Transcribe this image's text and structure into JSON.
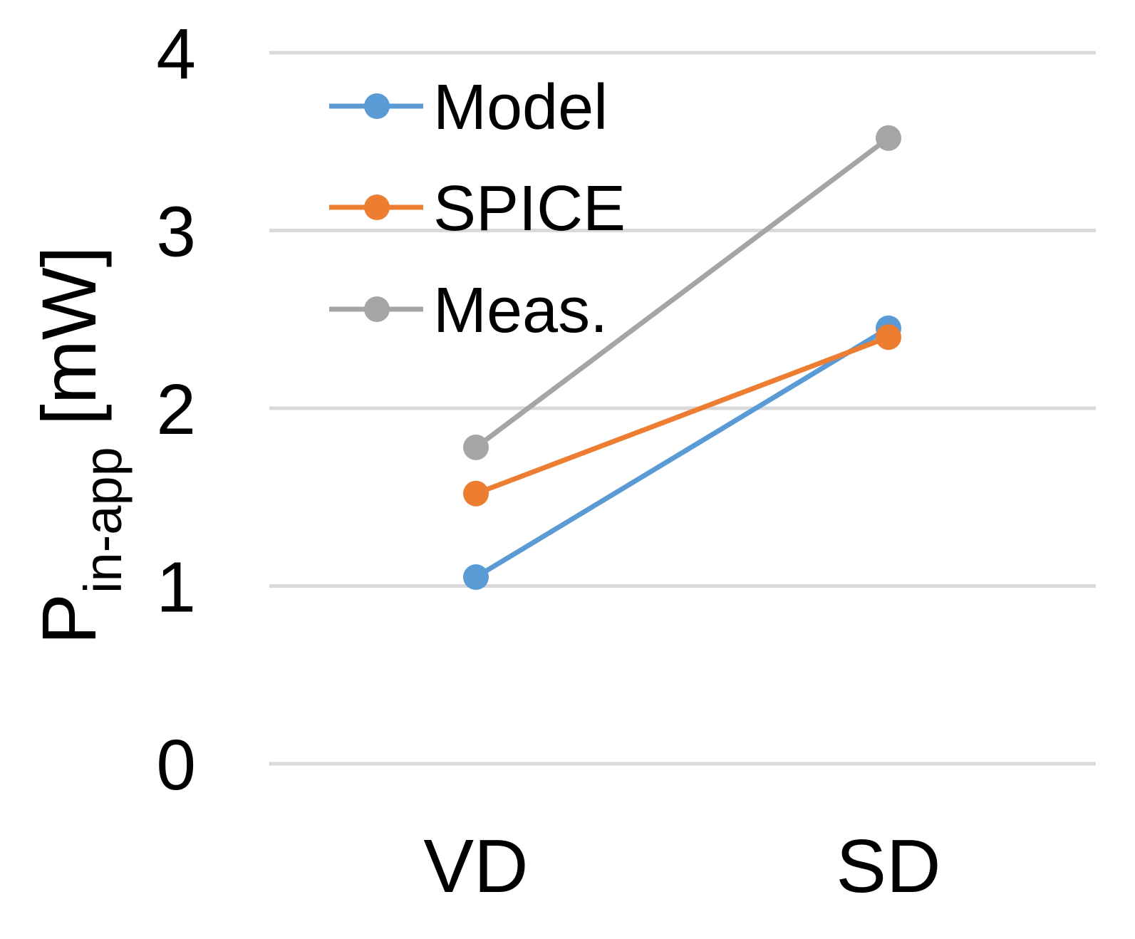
{
  "chart_data": {
    "type": "line",
    "title": "",
    "xlabel": "",
    "ylabel": {
      "main": "P",
      "subscript": "in-app",
      "unit": " [mW]"
    },
    "categories": [
      "VD",
      "SD"
    ],
    "ylim": [
      0,
      4
    ],
    "yticks": [
      "0",
      "1",
      "2",
      "3",
      "4"
    ],
    "grid": true,
    "legend_position": "top-left",
    "series": [
      {
        "name": "Model",
        "color": "#5b9bd5",
        "values": [
          1.05,
          2.45
        ]
      },
      {
        "name": "SPICE",
        "color": "#ed7d31",
        "values": [
          1.52,
          2.4
        ]
      },
      {
        "name": "Meas.",
        "color": "#a5a5a5",
        "values": [
          1.78,
          3.52
        ]
      }
    ]
  }
}
